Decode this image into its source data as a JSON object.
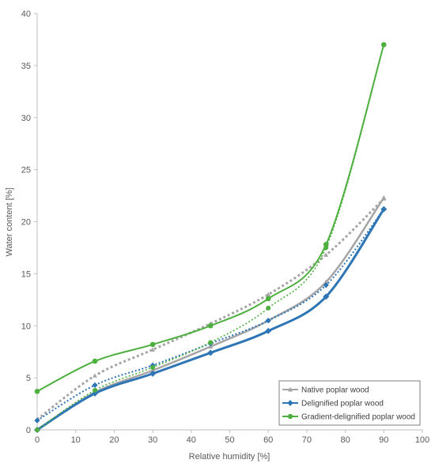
{
  "chart_data": {
    "type": "line",
    "xlabel": "Relative humidity [%]",
    "ylabel": "Water content [%]",
    "xlim": [
      0,
      100
    ],
    "ylim": [
      0,
      40
    ],
    "xticks": [
      "0",
      "10",
      "20",
      "30",
      "40",
      "50",
      "60",
      "70",
      "80",
      "90",
      "100"
    ],
    "yticks": [
      "0",
      "5",
      "10",
      "15",
      "20",
      "25",
      "30",
      "35",
      "40"
    ],
    "grid": false,
    "legend_position": "bottom-right",
    "series": [
      {
        "name": "Native poplar wood",
        "color": "#a5a5a5",
        "marker": "triangle",
        "measured": [
          [
            0,
            0
          ],
          [
            15,
            3.6
          ],
          [
            30,
            5.7
          ],
          [
            45,
            8.0
          ],
          [
            60,
            10.5
          ],
          [
            75,
            14.2
          ],
          [
            90,
            22.3
          ]
        ],
        "fit": [
          [
            0,
            1.0
          ],
          [
            15,
            5.2
          ],
          [
            30,
            7.7
          ],
          [
            45,
            10.2
          ],
          [
            60,
            13.0
          ],
          [
            75,
            16.8
          ],
          [
            90,
            22.2
          ]
        ]
      },
      {
        "name": "Delignified poplar wood",
        "color": "#2e75b6",
        "marker": "diamond",
        "measured": [
          [
            0,
            0
          ],
          [
            15,
            3.5
          ],
          [
            30,
            5.4
          ],
          [
            45,
            7.4
          ],
          [
            60,
            9.5
          ],
          [
            75,
            12.8
          ],
          [
            90,
            21.2
          ]
        ],
        "fit": [
          [
            0,
            0.9
          ],
          [
            15,
            4.3
          ],
          [
            30,
            6.2
          ],
          [
            45,
            8.3
          ],
          [
            60,
            10.5
          ],
          [
            75,
            13.9
          ],
          [
            90,
            21.2
          ]
        ]
      },
      {
        "name": "Gradient-delignified poplar wood",
        "color": "#4caf3e",
        "marker": "circle",
        "measured": [
          [
            0,
            3.7
          ],
          [
            15,
            6.6
          ],
          [
            30,
            8.2
          ],
          [
            45,
            10.0
          ],
          [
            60,
            12.6
          ],
          [
            75,
            17.8
          ],
          [
            90,
            37.0
          ]
        ],
        "fit": [
          [
            0,
            0
          ],
          [
            15,
            3.8
          ],
          [
            30,
            6.0
          ],
          [
            45,
            8.4
          ],
          [
            60,
            11.7
          ],
          [
            75,
            17.5
          ],
          [
            90,
            37.0
          ]
        ]
      }
    ]
  }
}
